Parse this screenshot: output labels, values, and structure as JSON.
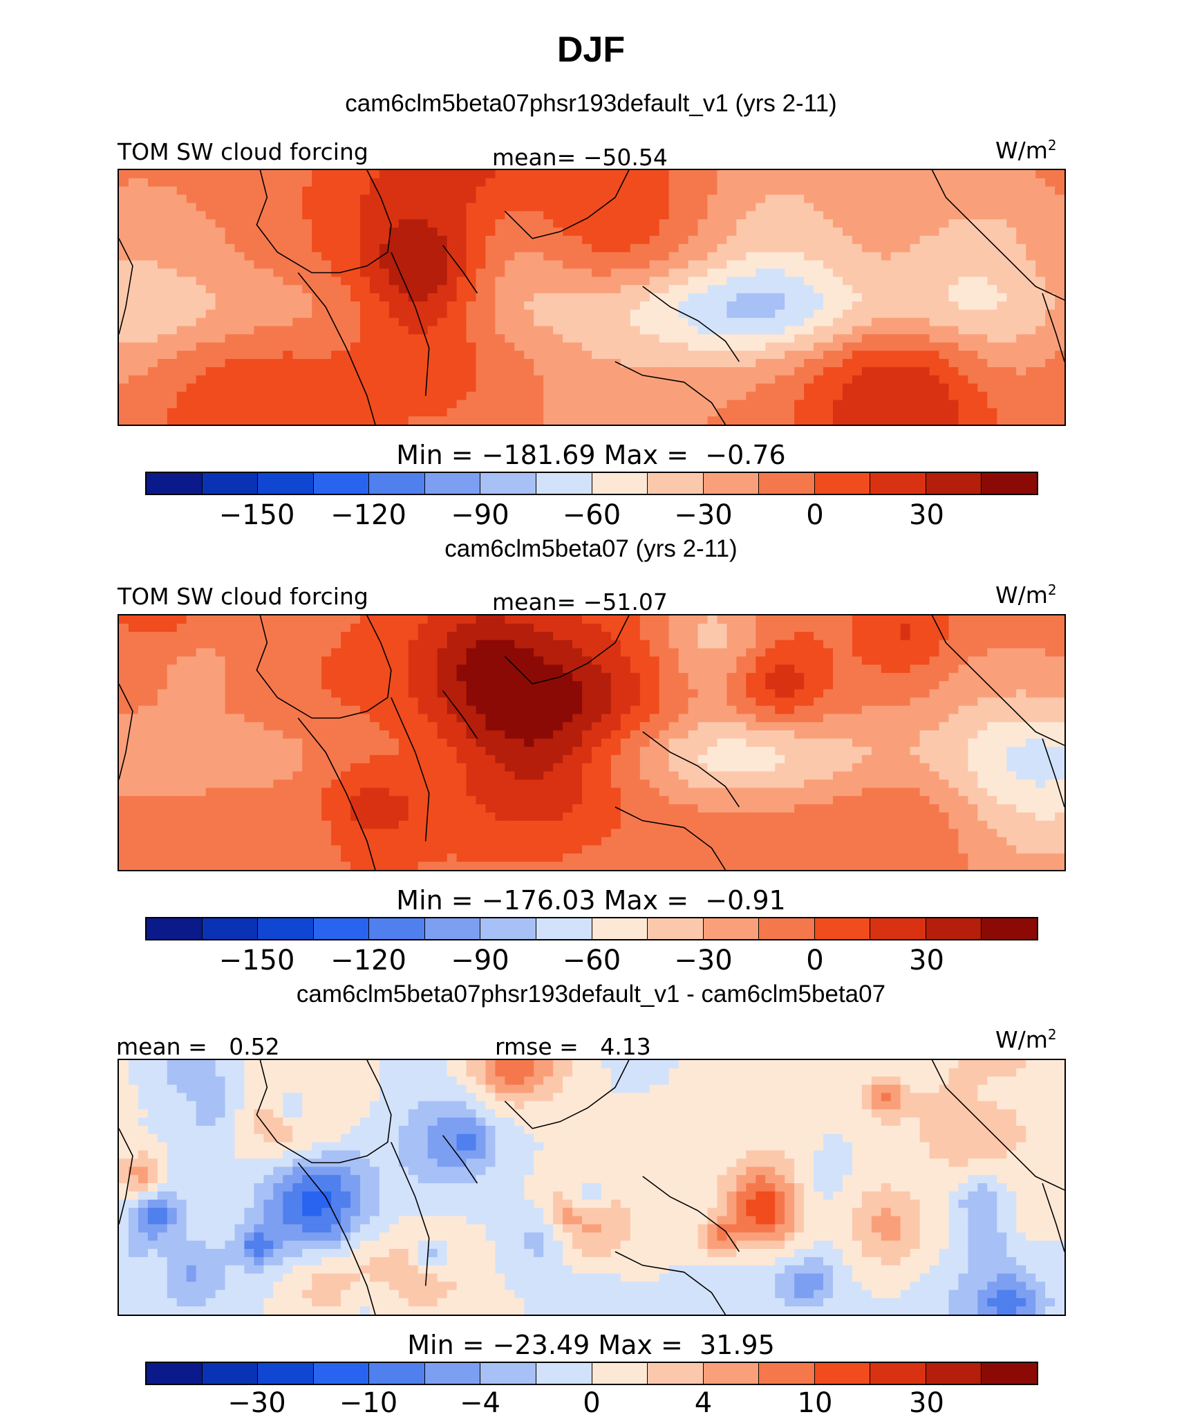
{
  "figure": {
    "title": "DJF",
    "unit": "W/m",
    "unit_sup": "2"
  },
  "colors": {
    "colorbar": [
      "#0a1a8a",
      "#0a32b4",
      "#0f46d2",
      "#2864f0",
      "#507fee",
      "#7d9ff2",
      "#a7c0f6",
      "#d2e2fa",
      "#fde8d6",
      "#fcc8ac",
      "#f9a07a",
      "#f5784c",
      "#f04c1e",
      "#d93212",
      "#b41e0a",
      "#8c0a05"
    ]
  },
  "chart_data": [
    {
      "type": "heatmap",
      "title": "cam6clm5beta07phsr193default_v1 (yrs 2-11)",
      "variable": "TOM SW cloud forcing",
      "mean_label": "mean= −50.54",
      "mean": -50.54,
      "min": -181.69,
      "max": -0.76,
      "minmax_label": "Min = −181.69 Max =  −0.76",
      "colorbar_ticks": [
        "−150",
        "−120",
        "−90",
        "−60",
        "−30",
        "0",
        "30"
      ],
      "colorbar_tick_slots": [
        2,
        4,
        6,
        8,
        10,
        12,
        14
      ],
      "field_seed": 1
    },
    {
      "type": "heatmap",
      "title": "cam6clm5beta07 (yrs 2-11)",
      "variable": "TOM SW cloud forcing",
      "mean_label": "mean= −51.07",
      "mean": -51.07,
      "min": -176.03,
      "max": -0.91,
      "minmax_label": "Min = −176.03 Max =  −0.91",
      "colorbar_ticks": [
        "−150",
        "−120",
        "−90",
        "−60",
        "−30",
        "0",
        "30"
      ],
      "colorbar_tick_slots": [
        2,
        4,
        6,
        8,
        10,
        12,
        14
      ],
      "field_seed": 2
    },
    {
      "type": "heatmap",
      "title": "cam6clm5beta07phsr193default_v1 - cam6clm5beta07",
      "mean_label": "mean =   0.52",
      "rmse_label": "rmse =   4.13",
      "mean": 0.52,
      "rmse": 4.13,
      "min": -23.49,
      "max": 31.95,
      "minmax_label": "Min = −23.49 Max =  31.95",
      "colorbar_ticks": [
        "−30",
        "−10",
        "−4",
        "0",
        "4",
        "10",
        "30"
      ],
      "colorbar_tick_slots": [
        2,
        4,
        6,
        8,
        10,
        12,
        14
      ],
      "field_seed": 3
    }
  ]
}
